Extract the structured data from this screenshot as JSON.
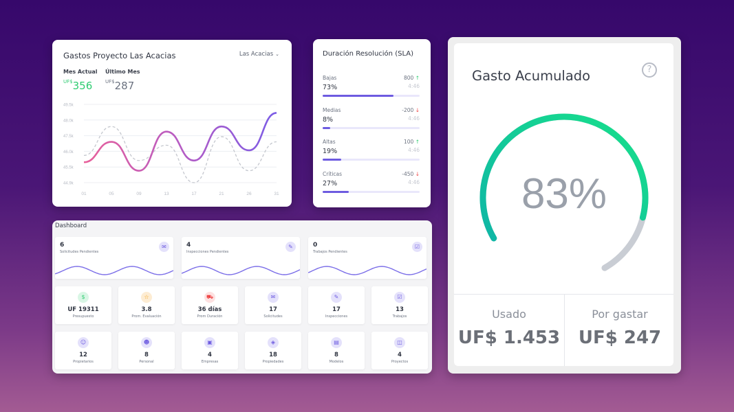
{
  "gastos": {
    "title": "Gastos Proyecto Las Acacias",
    "dropdown_value": "Las Acacias",
    "mes_actual": {
      "label": "Mes Actual",
      "currency": "UF$",
      "value": "356"
    },
    "ultimo_mes": {
      "label": "Último Mes",
      "currency": "UF$",
      "value": "287"
    }
  },
  "chart_data": {
    "type": "line",
    "title": "",
    "xlabel": "",
    "ylabel": "",
    "x_ticks": [
      "01",
      "05",
      "09",
      "13",
      "17",
      "21",
      "26",
      "31"
    ],
    "y_ticks": [
      "44.9k",
      "45.5k",
      "46.0k",
      "47.5k",
      "48.0k",
      "49.5k"
    ],
    "grid": true,
    "series": [
      {
        "style": "solid-gradient",
        "values": [
          46.1,
          47.3,
          45.6,
          47.9,
          46.2,
          48.2,
          46.8,
          49.0
        ]
      },
      {
        "style": "dashed",
        "values": [
          46.5,
          48.2,
          46.2,
          47.1,
          44.9,
          47.6,
          45.6,
          47.3
        ]
      }
    ]
  },
  "sla": {
    "title": "Duración Resolución (SLA)",
    "rows": [
      {
        "name": "Bajas",
        "pct": "73%",
        "fill": 0.73,
        "delta": "800",
        "dir": "up",
        "time": "4:46"
      },
      {
        "name": "Medias",
        "pct": "8%",
        "fill": 0.08,
        "delta": "-200",
        "dir": "down",
        "time": "4:46"
      },
      {
        "name": "Altas",
        "pct": "19%",
        "fill": 0.19,
        "delta": "100",
        "dir": "up",
        "time": "4:46"
      },
      {
        "name": "Críticas",
        "pct": "27%",
        "fill": 0.27,
        "delta": "-450",
        "dir": "down",
        "time": "4:46"
      }
    ]
  },
  "gauge": {
    "title": "Gasto Acumulado",
    "help_icon": "?",
    "percent_label": "83%",
    "fraction": 0.83,
    "usado_label": "Usado",
    "usado_value": "UF$ 1.453",
    "porgastar_label": "Por gastar",
    "porgastar_value": "UF$ 247",
    "colors": {
      "start": "#0fb6a6",
      "end": "#18e08a",
      "track": "#c9cdd4"
    }
  },
  "dashboard": {
    "title": "Dashboard",
    "pending": [
      {
        "value": "6",
        "label": "Solicitudes Pendientes",
        "icon": "inbox-icon"
      },
      {
        "value": "4",
        "label": "Inspecciones Pendientes",
        "icon": "edit-icon"
      },
      {
        "value": "0",
        "label": "Trabajos Pendientes",
        "icon": "checkbox-icon"
      }
    ],
    "tiles_row1": [
      {
        "value": "UF 19311",
        "label": "Presupuesto",
        "icon": "dollar-icon",
        "color": "#2ecc71"
      },
      {
        "value": "3.8",
        "label": "Prom. Evaluación",
        "icon": "star-icon",
        "color": "#f59e0b"
      },
      {
        "value": "36 días",
        "label": "Prom Duración",
        "icon": "truck-icon",
        "color": "#ef4444"
      },
      {
        "value": "17",
        "label": "Solicitudes",
        "icon": "inbox-icon",
        "color": "#6d5be0"
      },
      {
        "value": "17",
        "label": "Inspecciones",
        "icon": "edit-icon",
        "color": "#6d5be0"
      },
      {
        "value": "13",
        "label": "Trabajos",
        "icon": "checkbox-icon",
        "color": "#6d5be0"
      }
    ],
    "tiles_row2": [
      {
        "value": "12",
        "label": "Propietarios",
        "icon": "user-icon",
        "color": "#6d5be0"
      },
      {
        "value": "8",
        "label": "Personal",
        "icon": "users-icon",
        "color": "#6d5be0"
      },
      {
        "value": "4",
        "label": "Empresas",
        "icon": "briefcase-icon",
        "color": "#6d5be0"
      },
      {
        "value": "18",
        "label": "Propiedades",
        "icon": "layers-icon",
        "color": "#6d5be0"
      },
      {
        "value": "8",
        "label": "Modelos",
        "icon": "layout-icon",
        "color": "#6d5be0"
      },
      {
        "value": "4",
        "label": "Proyectos",
        "icon": "folder-icon",
        "color": "#6d5be0"
      }
    ]
  }
}
